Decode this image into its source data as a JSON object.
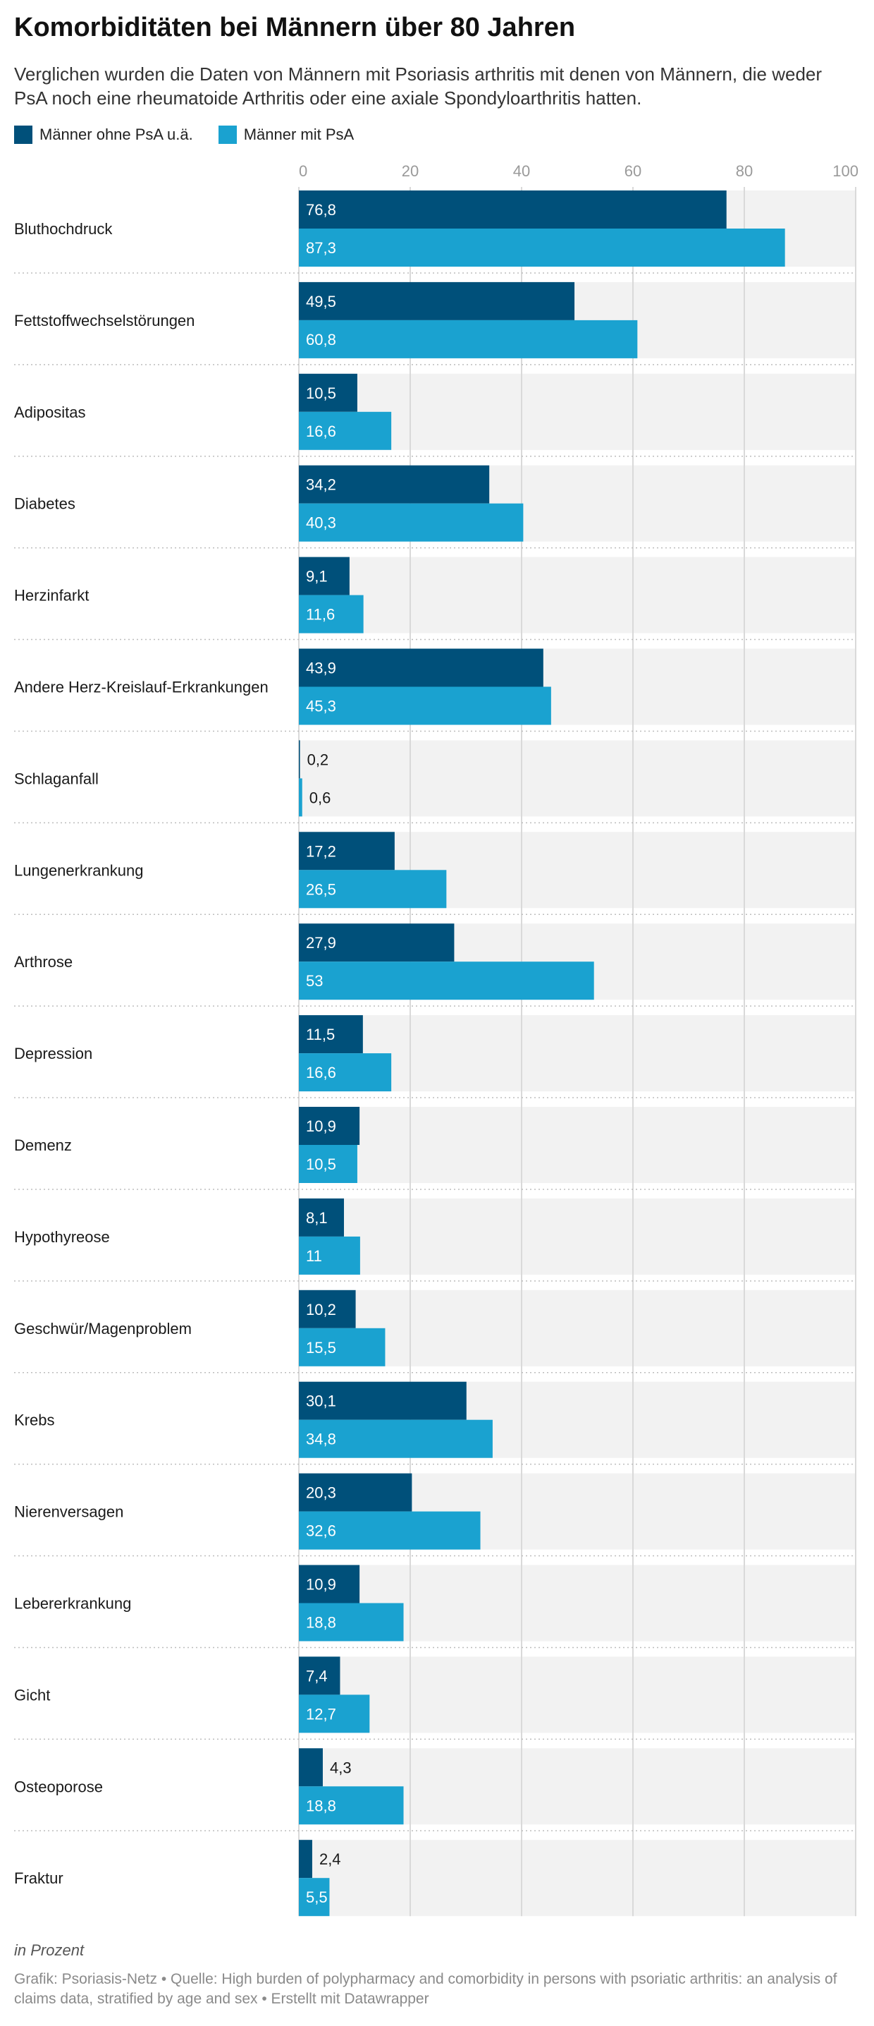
{
  "header": {
    "title": "Komorbiditäten bei Männern über 80 Jahren",
    "subtitle": "Verglichen wurden die Daten von Männern mit Psoriasis arthritis mit denen von Männern, die weder PsA noch eine rheumatoide Arthritis oder eine axiale Spondyloarthritis hatten."
  },
  "legend": [
    {
      "label": "Männer ohne PsA u.ä.",
      "color": "#00507a"
    },
    {
      "label": "Männer mit PsA",
      "color": "#1aa2d0"
    }
  ],
  "footer": {
    "unit_note": "in Prozent",
    "credit": "Grafik: Psoriasis-Netz • Quelle: High burden of polypharmacy and comorbidity in persons with psoriatic arthritis: an analysis of claims data, stratified by age and sex • Erstellt mit Datawrapper"
  },
  "chart_data": {
    "type": "bar",
    "orientation": "horizontal",
    "grouped": true,
    "title": "Komorbiditäten bei Männern über 80 Jahren",
    "xlim": [
      0,
      100
    ],
    "xticks": [
      0,
      20,
      40,
      60,
      80,
      100
    ],
    "xlabel": "",
    "ylabel": "",
    "unit": "in Prozent",
    "grid": true,
    "legend_position": "top-left",
    "categories": [
      "Bluthochdruck",
      "Fettstoffwechselstörungen",
      "Adipositas",
      "Diabetes",
      "Herzinfarkt",
      "Andere Herz-Kreislauf-Erkrankungen",
      "Schlaganfall",
      "Lungenerkrankung",
      "Arthrose",
      "Depression",
      "Demenz",
      "Hypothyreose",
      "Geschwür/Magenproblem",
      "Krebs",
      "Nierenversagen",
      "Lebererkrankung",
      "Gicht",
      "Osteoporose",
      "Fraktur"
    ],
    "series": [
      {
        "name": "Männer ohne PsA u.ä.",
        "color": "#00507a",
        "values": [
          76.8,
          49.5,
          10.5,
          34.2,
          9.1,
          43.9,
          0.2,
          17.2,
          27.9,
          11.5,
          10.9,
          8.1,
          10.2,
          30.1,
          20.3,
          10.9,
          7.4,
          4.3,
          2.4
        ],
        "labels": [
          "76,8",
          "49,5",
          "10,5",
          "34,2",
          "9,1",
          "43,9",
          "0,2",
          "17,2",
          "27,9",
          "11,5",
          "10,9",
          "8,1",
          "10,2",
          "30,1",
          "20,3",
          "10,9",
          "7,4",
          "4,3",
          "2,4"
        ]
      },
      {
        "name": "Männer mit PsA",
        "color": "#1aa2d0",
        "values": [
          87.3,
          60.8,
          16.6,
          40.3,
          11.6,
          45.3,
          0.6,
          26.5,
          53,
          16.6,
          10.5,
          11,
          15.5,
          34.8,
          32.6,
          18.8,
          12.7,
          18.8,
          5.5
        ],
        "labels": [
          "87,3",
          "60,8",
          "16,6",
          "40,3",
          "11,6",
          "45,3",
          "0,6",
          "26,5",
          "53",
          "16,6",
          "10,5",
          "11",
          "15,5",
          "34,8",
          "32,6",
          "18,8",
          "12,7",
          "18,8",
          "5,5"
        ]
      }
    ]
  }
}
